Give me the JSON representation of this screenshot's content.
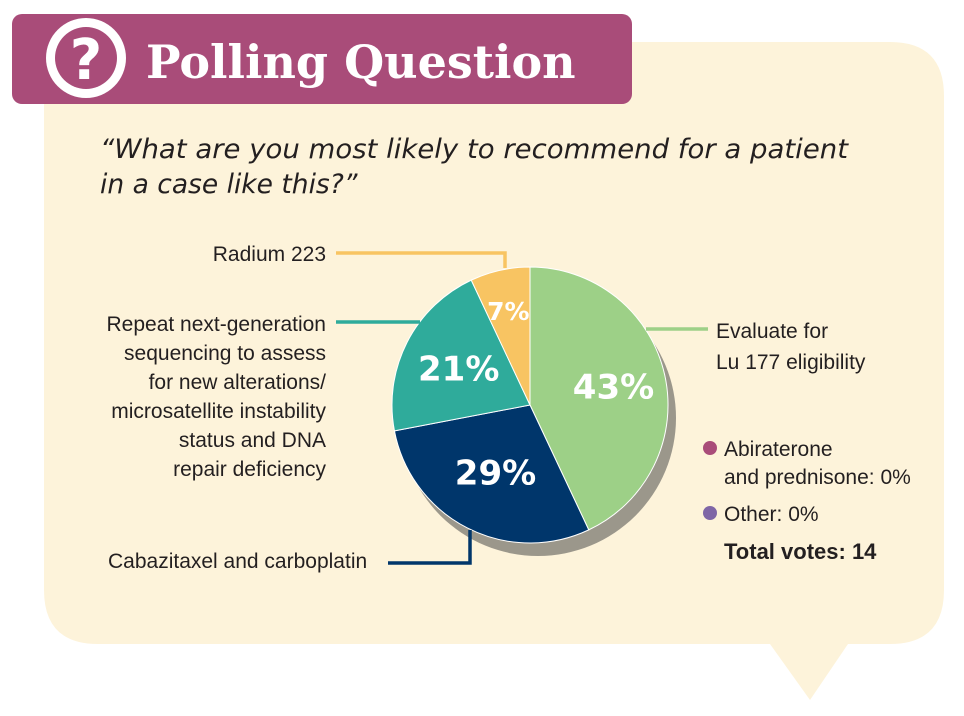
{
  "header": {
    "title": "Polling Question",
    "icon_glyph": "?"
  },
  "question": {
    "line1": "“What are you most likely to recommend for a patient",
    "line2": "in a case like this?”"
  },
  "colors": {
    "background": "#fdf3da",
    "header": "#a94c79",
    "lu177": "#9dd087",
    "cabazitaxel": "#00366b",
    "repeat_ngs": "#2fab9b",
    "radium": "#f8c462",
    "abiraterone": "#a94c79",
    "other": "#7f66a6"
  },
  "chart_data": {
    "type": "pie",
    "title": "What are you most likely to recommend for a patient in a case like this?",
    "slices": [
      {
        "key": "lu177",
        "label_lines": [
          "Evaluate for",
          "Lu 177 eligibility"
        ],
        "value": 43,
        "display": "43%"
      },
      {
        "key": "cabazitaxel",
        "label_lines": [
          "Cabazitaxel and carboplatin"
        ],
        "value": 29,
        "display": "29%"
      },
      {
        "key": "repeat_ngs",
        "label_lines": [
          "Repeat next-generation",
          "sequencing to assess",
          "for new alterations/",
          "microsatellite instability",
          "status and DNA",
          "repair deficiency"
        ],
        "value": 21,
        "display": "21%"
      },
      {
        "key": "radium",
        "label_lines": [
          "Radium 223"
        ],
        "value": 7,
        "display": "7%"
      }
    ],
    "zero_entries": [
      {
        "key": "abiraterone",
        "label_lines": [
          "Abiraterone",
          "and prednisone: 0%"
        ],
        "value": 0
      },
      {
        "key": "other",
        "label_lines": [
          "Other: 0%"
        ],
        "value": 0
      }
    ],
    "total_votes_label": "Total votes: 14",
    "total_votes": 14
  }
}
